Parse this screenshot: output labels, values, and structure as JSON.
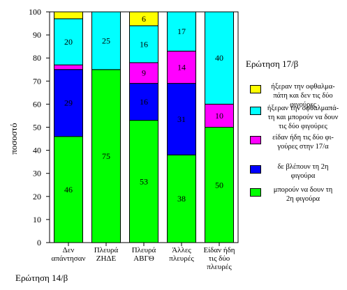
{
  "chart_data": {
    "type": "bar",
    "stacked": true,
    "percent": true,
    "categories": [
      "Δεν απάντησαν",
      "Πλευρά ΖΗΔΕ",
      "Πλευρά ΑΒΓΘ",
      "Άλλες πλευρές",
      "Είδαν ήδη τις δύο πλευρές"
    ],
    "category_lines": [
      [
        "Δεν",
        "απάντησαν"
      ],
      [
        "Πλευρά",
        "ΖΗΔΕ"
      ],
      [
        "Πλευρά",
        "ΑΒΓΘ"
      ],
      [
        "Άλλες",
        "πλευρές"
      ],
      [
        "Είδαν ήδη",
        "τις δύο",
        "πλευρές"
      ]
    ],
    "series": [
      {
        "name": "μπορούν να δουν τη 2η φιγούρα",
        "color": "#00ff00",
        "values": [
          46,
          75,
          53,
          38,
          50
        ],
        "labels": [
          "46",
          "75",
          "53",
          "38",
          "50"
        ]
      },
      {
        "name": "δε βλέπουν τη 2η φιγούρα",
        "color": "#0000ff",
        "values": [
          29,
          0,
          16,
          31,
          0
        ],
        "labels": [
          "29",
          "",
          "16",
          "31",
          ""
        ]
      },
      {
        "name": "είδαν ήδη τις δύο φιγούρες στην 17/α",
        "color": "#ff00ff",
        "values": [
          2,
          0,
          9,
          14,
          10
        ],
        "labels": [
          "",
          "",
          "9",
          "14",
          "10"
        ]
      },
      {
        "name": "ήξεραν την οφθαλμαπάτη και μπορούν να δουν τις δύο φιγούρες",
        "color": "#00ffff",
        "values": [
          20,
          25,
          16,
          17,
          40
        ],
        "labels": [
          "20",
          "25",
          "16",
          "17",
          "40"
        ]
      },
      {
        "name": "ήξεραν την οφθαλμαπάτη και δεν τις δύο φιγούρες",
        "color": "#ffff00",
        "values": [
          3,
          0,
          6,
          0,
          0
        ],
        "labels": [
          "",
          "",
          "6",
          "",
          ""
        ]
      }
    ],
    "ylabel": "ποσοστό",
    "xlabel": "Ερώτηση 14/β",
    "legend_title": "Ερώτηση 17/β",
    "ylim": [
      0,
      100
    ],
    "yticks": [
      0,
      10,
      20,
      30,
      40,
      50,
      60,
      70,
      80,
      90,
      100
    ],
    "grid": false,
    "legend_position": "right",
    "legend": [
      {
        "lines": [
          "ήξεραν την οφθαλμα-",
          "πάτη και δεν τις δύο",
          "φιγούρες"
        ],
        "color": "#ffff00"
      },
      {
        "lines": [
          "ήξεραν την οφθαλμαπά-",
          "τη και μπορούν να δουν",
          "τις δύο φιγούρες"
        ],
        "color": "#00ffff"
      },
      {
        "lines": [
          "είδαν ήδη τις δύο φι-",
          "γούρες στην 17/α"
        ],
        "color": "#ff00ff"
      },
      {
        "lines": [
          "δε βλέπουν τη 2η",
          "φιγούρα"
        ],
        "color": "#0000ff"
      },
      {
        "lines": [
          "μπορούν να δουν τη",
          "2η φιγούρα"
        ],
        "color": "#00ff00"
      }
    ]
  }
}
